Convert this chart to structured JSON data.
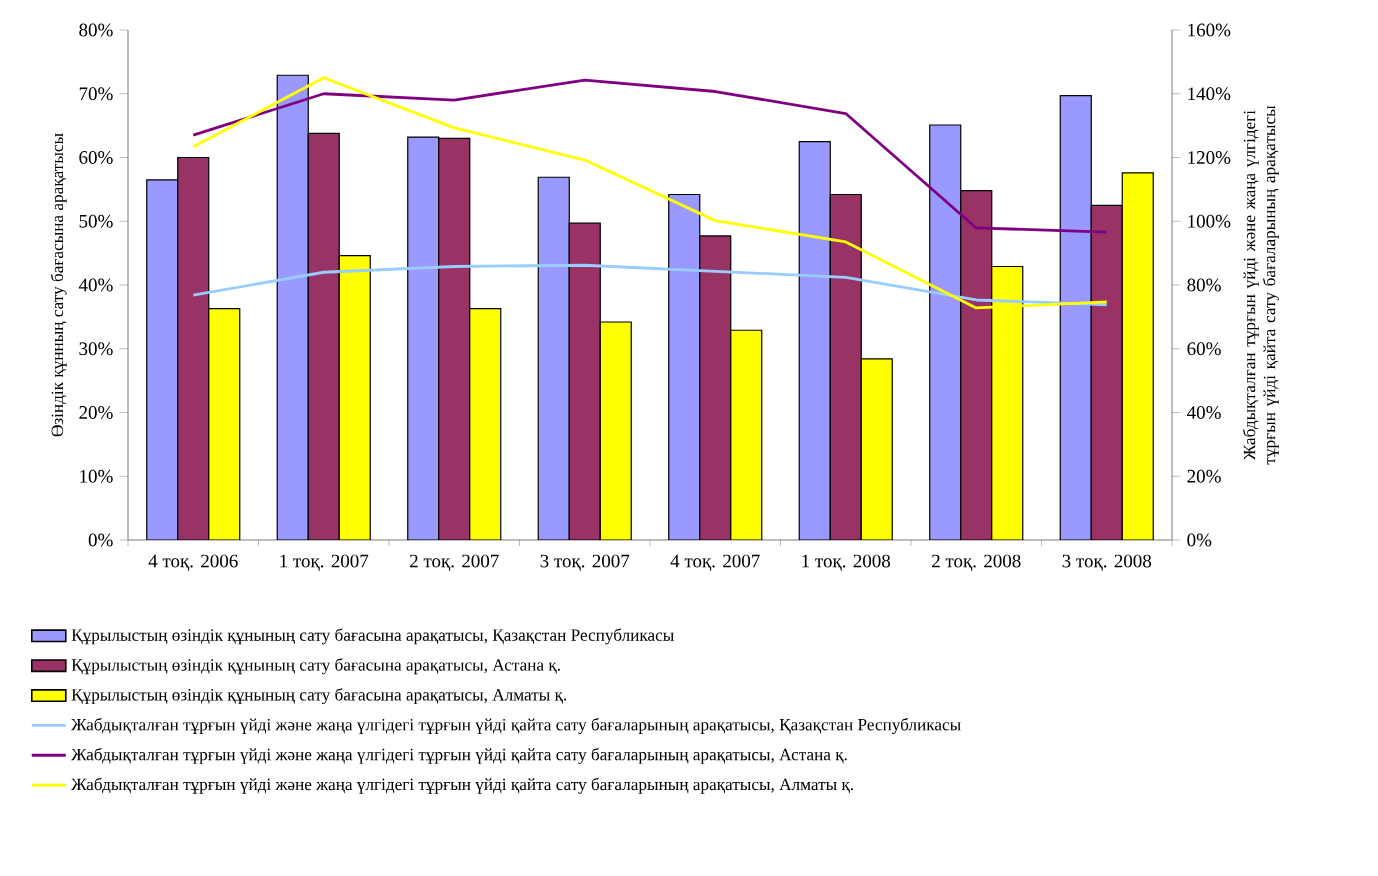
{
  "chart_data": {
    "type": "bar",
    "ylabel": "Өзіндік құнның сату бағасына арақатысы",
    "y2label": "Жабдықталған тұрғын үйді және жаңа үлгідегі тұрғын үйді қайта сату бағаларының арақатысы",
    "categories": [
      "4 тоқ. 2006",
      "1 тоқ. 2007",
      "2 тоқ. 2007",
      "3 тоқ. 2007",
      "4 тоқ. 2007",
      "1 тоқ. 2008",
      "2 тоқ. 2008",
      "3 тоқ. 2008"
    ],
    "series": [
      {
        "name": "Құрылыстың өзіндік құнының сату бағасына арақатысы, Қазақстан Республикасы",
        "color": "#9999ff",
        "values": [
          56.5,
          72.9,
          63.2,
          56.9,
          54.2,
          62.5,
          65.1,
          69.7
        ]
      },
      {
        "name": "Құрылыстың өзіндік құнының сату бағасына арақатысы, Астана қ.",
        "color": "#993366",
        "values": [
          60,
          63.8,
          63,
          49.7,
          47.7,
          54.2,
          54.8,
          52.5
        ]
      },
      {
        "name": "Құрылыстың өзіндік құнының сату бағасына арақатысы, Алматы қ.",
        "color": "#ffff00",
        "values": [
          36.3,
          44.6,
          36.3,
          34.2,
          32.9,
          28.4,
          42.9,
          57.6
        ]
      },
      {
        "name": "Жабдықталған тұрғын үйді және жаңа үлгідегі тұрғын үйді қайта сату бағаларының арақатысы, Қазақстан Республикасы",
        "type": "line",
        "axis": "y2",
        "color": "#99ccff",
        "values": [
          76.8,
          84,
          85.8,
          86.2,
          84.3,
          82.4,
          75.3,
          73.8
        ]
      },
      {
        "name": "Жабдықталған тұрғын үйді және жаңа үлгідегі тұрғын үйді қайта сату бағаларының арақатысы, Астана қ.",
        "type": "line",
        "axis": "y2",
        "color": "#800080",
        "values": [
          127,
          140,
          138,
          144.3,
          140.7,
          133.8,
          97.9,
          96.6
        ]
      },
      {
        "name": "Жабдықталған тұрғын үйді және жаңа үлгідегі тұрғын үйді қайта сату бағаларының арақатысы, Алматы қ.",
        "type": "line",
        "axis": "y2",
        "color": "#ffff00",
        "values": [
          123.4,
          145,
          129.3,
          119.2,
          100.2,
          93.5,
          72.8,
          74.7
        ]
      }
    ],
    "ylim": [
      0,
      80
    ],
    "yticks": [
      {
        "value": 0,
        "label": "0%"
      },
      {
        "value": 10,
        "label": "10%"
      },
      {
        "value": 20,
        "label": "20%"
      },
      {
        "value": 30,
        "label": "30%"
      },
      {
        "value": 40,
        "label": "40%"
      },
      {
        "value": 50,
        "label": "50%"
      },
      {
        "value": 60,
        "label": "60%"
      },
      {
        "value": 70,
        "label": "70%"
      },
      {
        "value": 80,
        "label": "80%"
      }
    ],
    "y2lim": [
      0,
      160
    ],
    "y2ticks": [
      {
        "value": 0,
        "label": "0%"
      },
      {
        "value": 20,
        "label": "20%"
      },
      {
        "value": 40,
        "label": "40%"
      },
      {
        "value": 60,
        "label": "60%"
      },
      {
        "value": 80,
        "label": "80%"
      },
      {
        "value": 100,
        "label": "100%"
      },
      {
        "value": 120,
        "label": "120%"
      },
      {
        "value": 140,
        "label": "140%"
      },
      {
        "value": 160,
        "label": "160%"
      }
    ],
    "legend": "bottom"
  }
}
